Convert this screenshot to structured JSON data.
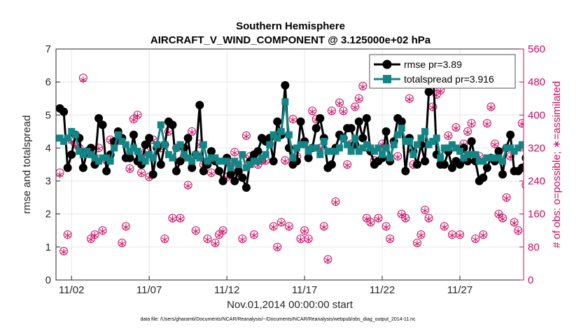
{
  "chart_data": {
    "type": "line",
    "title_line1": "Southern Hemisphere",
    "title_line2": "AIRCRAFT_V_WIND_COMPONENT @ 3.125000e+02 hPa",
    "xlabel": "Nov.01,2014 00:00:00 start",
    "ylabel_left": "rmse and totalspread",
    "ylabel_right": "# of obs: o=possible; ∗=assimilated",
    "x_ticks": [
      "11/02",
      "11/07",
      "11/12",
      "11/17",
      "11/22",
      "11/27"
    ],
    "x_tick_days": [
      2,
      7,
      12,
      17,
      22,
      27
    ],
    "xlim": [
      1.0,
      31.1
    ],
    "ylim_left": [
      0,
      7
    ],
    "ylim_right": [
      0,
      560
    ],
    "yticks_left": [
      "0",
      "1",
      "2",
      "3",
      "4",
      "5",
      "6",
      "7"
    ],
    "yticks_right": [
      "0",
      "80",
      "160",
      "240",
      "320",
      "400",
      "480",
      "560"
    ],
    "footnote": "data file: /Users/gharamti/Documents/NCAR/Reanalysis/~/Documents/NCAR/Reanalysis/webpub/obs_diag_output_2014-11.nc",
    "colors": {
      "rmse": "#000000",
      "spread": "#138585",
      "obs": "#cc0a5f",
      "grid": "#e6e6e6"
    },
    "series": [
      {
        "name": "rmse",
        "legend": "rmse pr=3.89",
        "x_start": 1.25,
        "dx": 0.25,
        "values": [
          5.2,
          5.1,
          3.4,
          3.8,
          4.4,
          4.3,
          3.4,
          3.9,
          4.0,
          3.5,
          4.9,
          4.7,
          3.3,
          3.8,
          4.2,
          4.5,
          4.3,
          3.7,
          3.7,
          4.4,
          3.6,
          3.5,
          4.1,
          4.3,
          3.2,
          4.0,
          3.5,
          4.1,
          4.8,
          4.7,
          3.3,
          3.6,
          4.0,
          4.3,
          3.4,
          3.8,
          5.3,
          3.3,
          3.5,
          3.9,
          3.6,
          3.3,
          3.0,
          3.7,
          3.2,
          3.0,
          3.3,
          3.1,
          2.8,
          3.6,
          3.8,
          3.9,
          4.3,
          4.2,
          4.3,
          3.6,
          4.8,
          4.4,
          5.9,
          4.0,
          3.5,
          3.6,
          4.8,
          4.2,
          3.7,
          4.0,
          4.6,
          4.9,
          4.3,
          3.4,
          3.5,
          4.0,
          4.4,
          4.3,
          4.6,
          4.6,
          4.1,
          4.8,
          4.3,
          4.9,
          3.9,
          3.5,
          3.6,
          3.7,
          4.5,
          3.6,
          4.2,
          4.9,
          4.8,
          3.3,
          4.3,
          3.9,
          3.5,
          4.1,
          3.6,
          5.7,
          6.7,
          3.8,
          3.5,
          3.5,
          3.9,
          3.4,
          3.6,
          3.5,
          4.0,
          3.6,
          4.2,
          3.6,
          3.0,
          3.1,
          3.4,
          3.7,
          3.6,
          3.9,
          3.2,
          4.0,
          4.4,
          3.3,
          3.3,
          3.4,
          3.7,
          3.8,
          3.8,
          4.3,
          4.2,
          4.3,
          4.2,
          3.9,
          3.9,
          3.4,
          2.9,
          2.8,
          2.9,
          3.7,
          3.8,
          3.0,
          3.6,
          3.8,
          3.4,
          3.9,
          3.3,
          3.4,
          4.5,
          4.4,
          3.5,
          3.9,
          3.6,
          3.6,
          3.4,
          5.5,
          4.6,
          4.5,
          3.7,
          3.2,
          4.5,
          3.2,
          3.6,
          3.4,
          3.0,
          2.8,
          4.2
        ]
      },
      {
        "name": "totalspread",
        "legend": "totalspread pr=3.916",
        "x_start": 1.25,
        "dx": 0.25,
        "values": [
          4.3,
          4.2,
          4.3,
          4.5,
          4.4,
          3.9,
          3.8,
          3.9,
          3.8,
          3.7,
          3.6,
          3.7,
          3.7,
          3.6,
          4.0,
          4.4,
          4.2,
          4.1,
          3.9,
          4.0,
          3.9,
          3.7,
          3.6,
          3.8,
          3.7,
          4.1,
          4.7,
          4.1,
          3.8,
          3.7,
          4.0,
          4.1,
          3.8,
          3.7,
          3.6,
          3.8,
          3.7,
          4.1,
          3.6,
          3.7,
          3.7,
          3.6,
          3.6,
          3.6,
          3.4,
          3.6,
          3.5,
          3.8,
          3.4,
          3.5,
          3.6,
          3.6,
          3.7,
          3.8,
          4.1,
          4.4,
          4.3,
          4.5,
          5.4,
          4.4,
          3.7,
          4.0,
          4.1,
          4.1,
          3.9,
          4.0,
          4.0,
          3.8,
          4.2,
          3.9,
          3.9,
          3.9,
          4.0,
          4.3,
          4.1,
          3.9,
          4.3,
          3.9,
          4.0,
          4.1,
          4.0,
          3.9,
          4.0,
          3.8,
          4.0,
          3.7,
          4.1,
          4.4,
          4.6,
          4.2,
          4.2,
          3.8,
          4.1,
          4.3,
          4.5,
          4.1,
          4.2,
          4.3,
          3.7,
          4.0,
          4.0,
          4.1,
          4.0,
          3.9,
          3.7,
          3.8,
          3.8,
          3.8,
          3.6,
          3.6,
          3.7,
          3.7,
          3.7,
          3.7,
          3.6,
          4.0,
          4.0,
          3.9,
          4.0,
          4.1,
          4.0,
          4.1,
          4.2,
          4.0,
          4.0,
          4.1,
          4.0,
          4.2,
          4.0,
          3.8,
          3.8,
          3.7,
          3.8,
          3.8,
          3.8,
          3.6,
          3.8,
          4.0,
          4.0,
          3.9,
          3.8,
          3.8,
          4.0,
          4.1,
          3.8,
          3.8,
          3.8,
          3.7,
          3.7,
          5.3,
          4.3,
          4.3,
          3.7,
          3.6,
          3.8,
          3.6,
          3.7,
          3.6,
          3.7,
          3.5,
          4.0
        ]
      },
      {
        "name": "obs_possible",
        "x_start": 1.25,
        "dx": 0.25,
        "values": [
          260,
          70,
          110,
          340,
          330,
          320,
          490,
          310,
          100,
          110,
          320,
          120,
          290,
          340,
          330,
          340,
          90,
          130,
          270,
          390,
          400,
          260,
          310,
          250,
          340,
          320,
          320,
          100,
          360,
          150,
          320,
          150,
          300,
          230,
          360,
          120,
          330,
          280,
          100,
          260,
          90,
          110,
          120,
          250,
          280,
          310,
          260,
          100,
          350,
          300,
          110,
          280,
          290,
          290,
          330,
          130,
          80,
          140,
          290,
          130,
          390,
          300,
          100,
          120,
          100,
          410,
          390,
          320,
          130,
          50,
          410,
          190,
          430,
          410,
          280,
          330,
          420,
          440,
          470,
          150,
          140,
          290,
          150,
          330,
          130,
          100,
          480,
          300,
          160,
          150,
          440,
          280,
          90,
          110,
          170,
          150,
          420,
          450,
          460,
          130,
          350,
          110,
          370,
          110,
          330,
          360,
          380,
          100,
          300,
          110,
          380,
          420,
          330,
          160,
          150,
          200,
          300,
          140,
          120,
          380,
          230,
          360,
          350,
          160,
          120,
          360,
          430,
          140,
          220,
          300,
          300,
          170,
          140,
          240,
          170,
          320,
          170,
          300,
          420,
          280,
          270,
          130,
          330,
          0,
          130,
          260,
          120,
          170,
          120,
          130,
          250,
          170,
          140,
          120,
          300,
          260,
          120,
          280,
          100,
          310,
          150
        ]
      },
      {
        "name": "obs_assimilated",
        "x_start": 1.25,
        "dx": 0.25,
        "values": [
          255,
          68,
          108,
          335,
          325,
          315,
          485,
          305,
          98,
          108,
          318,
          118,
          288,
          338,
          328,
          338,
          88,
          128,
          268,
          388,
          398,
          258,
          308,
          248,
          338,
          318,
          318,
          98,
          358,
          148,
          318,
          148,
          298,
          228,
          358,
          118,
          328,
          278,
          98,
          258,
          88,
          108,
          118,
          248,
          278,
          308,
          258,
          98,
          348,
          298,
          108,
          278,
          288,
          288,
          328,
          128,
          78,
          138,
          288,
          128,
          388,
          298,
          98,
          118,
          98,
          408,
          388,
          318,
          128,
          48,
          408,
          188,
          428,
          408,
          278,
          328,
          418,
          438,
          468,
          148,
          138,
          288,
          148,
          328,
          128,
          98,
          478,
          298,
          158,
          148,
          438,
          278,
          88,
          108,
          168,
          148,
          418,
          448,
          458,
          128,
          348,
          108,
          368,
          108,
          328,
          358,
          378,
          98,
          298,
          108,
          378,
          418,
          328,
          158,
          148,
          198,
          298,
          138,
          118,
          378,
          228,
          358,
          348,
          158,
          118,
          358,
          428,
          138,
          218,
          298,
          298,
          168,
          138,
          238,
          168,
          318,
          168,
          298,
          418,
          278,
          268,
          128,
          328,
          0,
          128,
          258,
          118,
          168,
          118,
          128,
          248,
          168,
          138,
          118,
          298,
          258,
          118,
          278,
          98,
          308,
          148
        ]
      }
    ]
  }
}
